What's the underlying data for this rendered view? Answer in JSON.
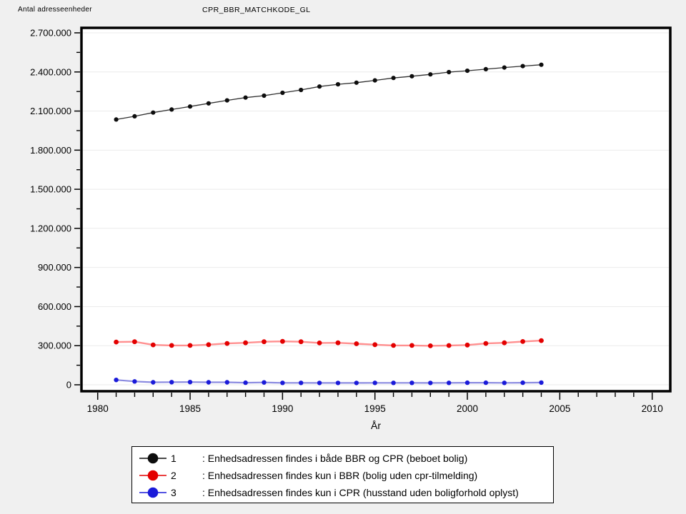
{
  "header": {
    "y_axis_corner_label": "Antal adresseenheder",
    "title": "CPR_BBR_MATCHKODE_GL"
  },
  "chart_data": {
    "type": "line",
    "title": "CPR_BBR_MATCHKODE_GL",
    "xlabel": "År",
    "ylabel": "Antal adresseenheder",
    "x_axis": {
      "min": 1979,
      "max": 2011,
      "major_ticks": [
        1980,
        1985,
        1990,
        1995,
        2000,
        2005,
        2010
      ],
      "major_tick_labels": [
        "1980",
        "1985",
        "1990",
        "1995",
        "2000",
        "2005",
        "2010"
      ],
      "minor_tick_step": 1
    },
    "y_axis": {
      "min": 0,
      "max": 2700000,
      "major_tick_step": 300000,
      "minor_tick_step": 150000,
      "tick_labels": [
        "0",
        "300.000",
        "600.000",
        "900.000",
        "1.200.000",
        "1.500.000",
        "1.800.000",
        "2.100.000",
        "2.400.000",
        "2.700.000"
      ],
      "grid": true
    },
    "years": [
      1981,
      1982,
      1983,
      1984,
      1985,
      1986,
      1987,
      1988,
      1989,
      1990,
      1991,
      1992,
      1993,
      1994,
      1995,
      1996,
      1997,
      1998,
      1999,
      2000,
      2001,
      2002,
      2003,
      2004
    ],
    "series": [
      {
        "id": "1",
        "name": "Enhedsadressen findes i både BBR og CPR (beboet bolig)",
        "marker_color": "#0d0d0d",
        "line_color": "#303030",
        "line_width": 1.3,
        "marker_radius": 3.1,
        "values": [
          2035000,
          2060000,
          2088000,
          2112000,
          2135000,
          2159000,
          2182000,
          2203000,
          2218000,
          2240000,
          2262000,
          2288000,
          2305000,
          2318000,
          2335000,
          2354000,
          2367000,
          2381000,
          2399000,
          2409000,
          2421000,
          2434000,
          2445000,
          2455000
        ]
      },
      {
        "id": "2",
        "name": "Enhedsadressen findes kun i BBR (bolig uden cpr-tilmelding)",
        "marker_color": "#e30000",
        "line_color": "#ff8f8f",
        "line_width": 2.4,
        "marker_radius": 3.4,
        "values": [
          328000,
          330000,
          306000,
          302000,
          302000,
          308000,
          317000,
          322000,
          330000,
          333000,
          330000,
          321000,
          322000,
          315000,
          308000,
          302000,
          302000,
          299000,
          301000,
          305000,
          317000,
          322000,
          332000,
          339000
        ]
      },
      {
        "id": "3",
        "name": "Enhedsadressen findes kun i CPR (husstand uden boligforhold oplyst)",
        "marker_color": "#1a1ad9",
        "line_color": "#8a8ae0",
        "line_width": 2.2,
        "marker_radius": 3.2,
        "values": [
          37000,
          26000,
          19000,
          20000,
          21000,
          19000,
          19000,
          16000,
          18000,
          15000,
          15000,
          14000,
          14000,
          14000,
          15000,
          15000,
          15000,
          14000,
          15000,
          16000,
          16000,
          15000,
          16000,
          17000
        ]
      }
    ]
  },
  "legend": {
    "items": [
      {
        "number": "1",
        "label": ": Enhedsadressen findes i både BBR og CPR (beboet bolig)"
      },
      {
        "number": "2",
        "label": ": Enhedsadressen findes kun i BBR (bolig uden cpr-tilmelding)"
      },
      {
        "number": "3",
        "label": ": Enhedsadressen findes kun i CPR (husstand uden boligforhold oplyst)"
      }
    ]
  }
}
